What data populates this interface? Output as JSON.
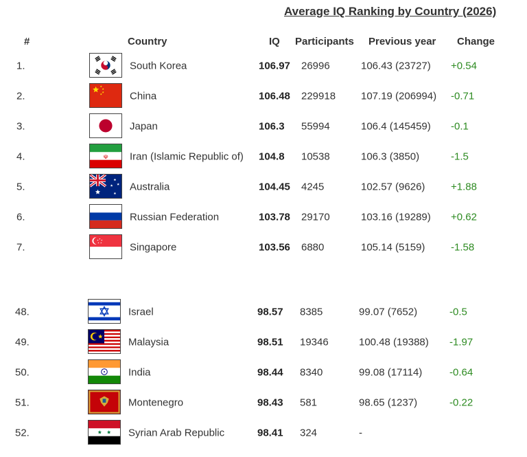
{
  "title": "Average IQ Ranking by Country (2026)",
  "headers": {
    "rank": "#",
    "country": "Country",
    "iq": "IQ",
    "participants": "Participants",
    "previous": "Previous year",
    "change": "Change"
  },
  "top": [
    {
      "rank": "1.",
      "flag": "south-korea-flag",
      "country": "South Korea",
      "iq": "106.97",
      "participants": "26996",
      "previous": "106.43 (23727)",
      "change": "+0.54"
    },
    {
      "rank": "2.",
      "flag": "china-flag",
      "country": "China",
      "iq": "106.48",
      "participants": "229918",
      "previous": "107.19 (206994)",
      "change": "-0.71"
    },
    {
      "rank": "3.",
      "flag": "japan-flag",
      "country": "Japan",
      "iq": "106.3",
      "participants": "55994",
      "previous": "106.4 (145459)",
      "change": "-0.1"
    },
    {
      "rank": "4.",
      "flag": "iran-flag",
      "country": "Iran (Islamic Republic of)",
      "iq": "104.8",
      "participants": "10538",
      "previous": "106.3 (3850)",
      "change": "-1.5"
    },
    {
      "rank": "5.",
      "flag": "australia-flag",
      "country": "Australia",
      "iq": "104.45",
      "participants": "4245",
      "previous": "102.57 (9626)",
      "change": "+1.88"
    },
    {
      "rank": "6.",
      "flag": "russia-flag",
      "country": "Russian Federation",
      "iq": "103.78",
      "participants": "29170",
      "previous": "103.16 (19289)",
      "change": "+0.62"
    },
    {
      "rank": "7.",
      "flag": "singapore-flag",
      "country": "Singapore",
      "iq": "103.56",
      "participants": "6880",
      "previous": "105.14 (5159)",
      "change": "-1.58"
    }
  ],
  "bottom": [
    {
      "rank": "48.",
      "flag": "israel-flag",
      "country": "Israel",
      "iq": "98.57",
      "participants": "8385",
      "previous": "99.07 (7652)",
      "change": "-0.5"
    },
    {
      "rank": "49.",
      "flag": "malaysia-flag",
      "country": "Malaysia",
      "iq": "98.51",
      "participants": "19346",
      "previous": "100.48 (19388)",
      "change": "-1.97"
    },
    {
      "rank": "50.",
      "flag": "india-flag",
      "country": "India",
      "iq": "98.44",
      "participants": "8340",
      "previous": "99.08 (17114)",
      "change": "-0.64"
    },
    {
      "rank": "51.",
      "flag": "montenegro-flag",
      "country": "Montenegro",
      "iq": "98.43",
      "participants": "581",
      "previous": "98.65 (1237)",
      "change": "-0.22"
    },
    {
      "rank": "52.",
      "flag": "syria-flag",
      "country": "Syrian Arab Republic",
      "iq": "98.41",
      "participants": "324",
      "previous": "-",
      "change": ""
    }
  ],
  "colors": {
    "change_text": "#2e8b22",
    "text": "#333333",
    "flag_border": "#444444"
  }
}
